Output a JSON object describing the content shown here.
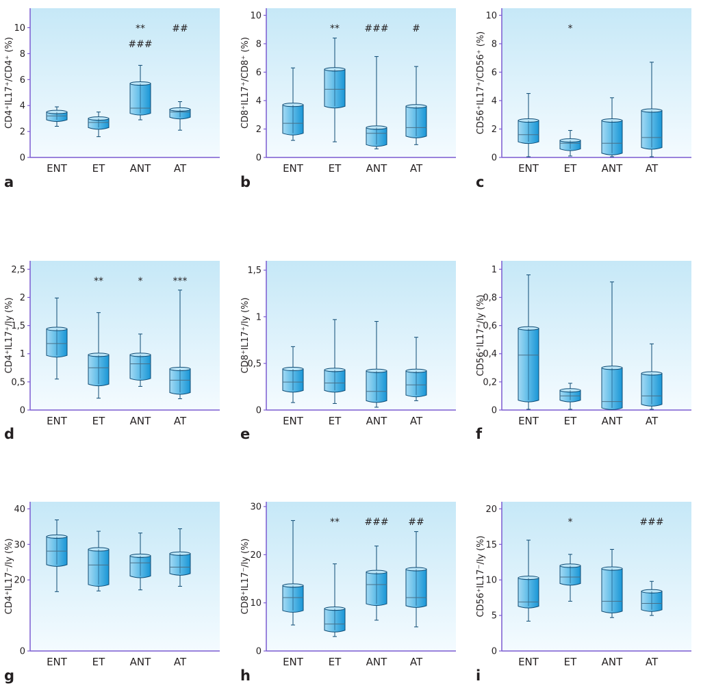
{
  "colors": {
    "plot_top": "#c6e8f7",
    "plot_bottom": "#f4fbff",
    "axis": "#7a5ad0",
    "box_light": "#a3daf4",
    "box_dark": "#1a96d6",
    "box_edge": "#0d4a73",
    "text": "#231f20"
  },
  "chart_data": [
    {
      "panel": "a",
      "type": "box",
      "ylabel": "CD4⁺IL17⁺/CD4⁺ (%)",
      "ylim": [
        0,
        11.5
      ],
      "yticks": [
        0,
        2,
        4,
        6,
        8,
        10
      ],
      "ytick_labels": [
        "0",
        "2",
        "4",
        "6",
        "8",
        "10"
      ],
      "categories": [
        "ENT",
        "ET",
        "ANT",
        "AT"
      ],
      "boxes": [
        {
          "min": 2.4,
          "q1": 2.9,
          "median": 3.2,
          "q3": 3.5,
          "max": 3.9
        },
        {
          "min": 1.6,
          "q1": 2.3,
          "median": 2.7,
          "q3": 3.0,
          "max": 3.5
        },
        {
          "min": 2.9,
          "q1": 3.4,
          "median": 3.8,
          "q3": 5.7,
          "max": 7.1
        },
        {
          "min": 2.1,
          "q1": 3.1,
          "median": 3.5,
          "q3": 3.7,
          "max": 4.3
        }
      ],
      "annotations": [
        {
          "category": "ANT",
          "lines": [
            "**",
            "###"
          ]
        },
        {
          "category": "AT",
          "lines": [
            "##"
          ]
        }
      ]
    },
    {
      "panel": "b",
      "type": "box",
      "ylabel": "CD8⁺IL17⁺/CD8⁺ (%)",
      "ylim": [
        0,
        10.5
      ],
      "yticks": [
        0,
        2,
        4,
        6,
        8,
        10
      ],
      "ytick_labels": [
        "0",
        "2",
        "4",
        "6",
        "8",
        "10"
      ],
      "categories": [
        "ENT",
        "ET",
        "ANT",
        "AT"
      ],
      "boxes": [
        {
          "min": 1.2,
          "q1": 1.7,
          "median": 2.4,
          "q3": 3.7,
          "max": 6.3
        },
        {
          "min": 1.1,
          "q1": 3.6,
          "median": 4.8,
          "q3": 6.2,
          "max": 8.4
        },
        {
          "min": 0.6,
          "q1": 0.9,
          "median": 1.7,
          "q3": 2.1,
          "max": 7.1
        },
        {
          "min": 0.9,
          "q1": 1.5,
          "median": 2.1,
          "q3": 3.6,
          "max": 6.4
        }
      ],
      "annotations": [
        {
          "category": "ET",
          "lines": [
            "**"
          ]
        },
        {
          "category": "ANT",
          "lines": [
            "###"
          ]
        },
        {
          "category": "AT",
          "lines": [
            "#"
          ]
        }
      ]
    },
    {
      "panel": "c",
      "type": "box",
      "ylabel": "CD56⁺IL17⁺/CD56⁺ (%)",
      "ylim": [
        0,
        10.5
      ],
      "yticks": [
        0,
        2,
        4,
        6,
        8,
        10
      ],
      "ytick_labels": [
        "0",
        "2",
        "4",
        "6",
        "8",
        "10"
      ],
      "categories": [
        "ENT",
        "ET",
        "ANT",
        "AT"
      ],
      "boxes": [
        {
          "min": 0.05,
          "q1": 1.1,
          "median": 1.6,
          "q3": 2.6,
          "max": 4.5
        },
        {
          "min": 0.1,
          "q1": 0.6,
          "median": 1.0,
          "q3": 1.2,
          "max": 1.9
        },
        {
          "min": 0.05,
          "q1": 0.3,
          "median": 1.0,
          "q3": 2.6,
          "max": 4.2
        },
        {
          "min": 0.05,
          "q1": 0.7,
          "median": 1.4,
          "q3": 3.3,
          "max": 6.7
        }
      ],
      "annotations": [
        {
          "category": "ET",
          "lines": [
            "*"
          ]
        }
      ]
    },
    {
      "panel": "d",
      "type": "box",
      "ylabel": "CD4⁺IL17⁺/ly (%)",
      "ylim": [
        0,
        2.65
      ],
      "yticks": [
        0,
        0.5,
        1,
        1.5,
        2,
        2.5
      ],
      "ytick_labels": [
        "0",
        "0,5",
        "1",
        "1,5",
        "2",
        "2,5"
      ],
      "categories": [
        "ENT",
        "ET",
        "ANT",
        "AT"
      ],
      "boxes": [
        {
          "min": 0.55,
          "q1": 0.97,
          "median": 1.18,
          "q3": 1.44,
          "max": 1.99
        },
        {
          "min": 0.21,
          "q1": 0.46,
          "median": 0.75,
          "q3": 0.98,
          "max": 1.73
        },
        {
          "min": 0.42,
          "q1": 0.56,
          "median": 0.82,
          "q3": 0.98,
          "max": 1.35
        },
        {
          "min": 0.2,
          "q1": 0.31,
          "median": 0.53,
          "q3": 0.73,
          "max": 2.13
        }
      ],
      "annotations": [
        {
          "category": "ET",
          "lines": [
            "**"
          ]
        },
        {
          "category": "ANT",
          "lines": [
            "*"
          ]
        },
        {
          "category": "AT",
          "lines": [
            "***"
          ]
        }
      ]
    },
    {
      "panel": "e",
      "type": "box",
      "ylabel": "CD8⁺IL17⁺/ly (%)",
      "ylim": [
        0,
        1.6
      ],
      "yticks": [
        0,
        0.5,
        1,
        1.5
      ],
      "ytick_labels": [
        "0",
        "0,5",
        "1",
        "1,5"
      ],
      "categories": [
        "ENT",
        "ET",
        "ANT",
        "AT"
      ],
      "boxes": [
        {
          "min": 0.08,
          "q1": 0.21,
          "median": 0.3,
          "q3": 0.44,
          "max": 0.68
        },
        {
          "min": 0.07,
          "q1": 0.21,
          "median": 0.29,
          "q3": 0.43,
          "max": 0.97
        },
        {
          "min": 0.03,
          "q1": 0.1,
          "median": 0.2,
          "q3": 0.42,
          "max": 0.95
        },
        {
          "min": 0.1,
          "q1": 0.16,
          "median": 0.27,
          "q3": 0.42,
          "max": 0.78
        }
      ],
      "annotations": []
    },
    {
      "panel": "f",
      "type": "box",
      "ylabel": "CD56⁺IL17⁺/ly (%)",
      "ylim": [
        0,
        1.06
      ],
      "yticks": [
        0,
        0.2,
        0.4,
        0.6,
        0.8,
        1
      ],
      "ytick_labels": [
        "0",
        "0,2",
        "0,4",
        "0,6",
        "0,8",
        "1"
      ],
      "categories": [
        "ENT",
        "ET",
        "ANT",
        "AT"
      ],
      "boxes": [
        {
          "min": 0.005,
          "q1": 0.07,
          "median": 0.39,
          "q3": 0.58,
          "max": 0.96
        },
        {
          "min": 0.005,
          "q1": 0.07,
          "median": 0.1,
          "q3": 0.14,
          "max": 0.19
        },
        {
          "min": 0.005,
          "q1": 0.015,
          "median": 0.06,
          "q3": 0.3,
          "max": 0.91
        },
        {
          "min": 0.005,
          "q1": 0.04,
          "median": 0.1,
          "q3": 0.26,
          "max": 0.47
        }
      ],
      "annotations": []
    },
    {
      "panel": "g",
      "type": "box",
      "ylabel": "CD4⁺IL17⁻/ly (%)",
      "ylim": [
        0,
        42
      ],
      "yticks": [
        0,
        20,
        30,
        40
      ],
      "ytick_labels": [
        "0",
        "20",
        "30",
        "40"
      ],
      "categories": [
        "ENT",
        "ET",
        "ANT",
        "AT"
      ],
      "boxes": [
        {
          "min": 16.7,
          "q1": 24.3,
          "median": 28.1,
          "q3": 32.2,
          "max": 36.9
        },
        {
          "min": 16.9,
          "q1": 18.7,
          "median": 24.2,
          "q3": 28.6,
          "max": 33.7
        },
        {
          "min": 17.2,
          "q1": 21.1,
          "median": 24.8,
          "q3": 26.8,
          "max": 33.2
        },
        {
          "min": 18.2,
          "q1": 21.8,
          "median": 23.6,
          "q3": 27.4,
          "max": 34.4
        }
      ],
      "annotations": []
    },
    {
      "panel": "h",
      "type": "box",
      "ylabel": "CD8⁺IL17⁻/ly (%)",
      "ylim": [
        0,
        31
      ],
      "yticks": [
        0,
        10,
        20,
        30
      ],
      "ytick_labels": [
        "0",
        "10",
        "20",
        "30"
      ],
      "categories": [
        "ENT",
        "ET",
        "ANT",
        "AT"
      ],
      "boxes": [
        {
          "min": 5.4,
          "q1": 8.4,
          "median": 11.1,
          "q3": 13.6,
          "max": 27.1
        },
        {
          "min": 3.0,
          "q1": 4.3,
          "median": 5.6,
          "q3": 8.8,
          "max": 18.1
        },
        {
          "min": 6.4,
          "q1": 9.8,
          "median": 13.8,
          "q3": 16.4,
          "max": 21.8
        },
        {
          "min": 5.0,
          "q1": 9.4,
          "median": 11.1,
          "q3": 17.0,
          "max": 24.8
        }
      ],
      "annotations": [
        {
          "category": "ET",
          "lines": [
            "**"
          ]
        },
        {
          "category": "ANT",
          "lines": [
            "###"
          ]
        },
        {
          "category": "AT",
          "lines": [
            "##"
          ]
        }
      ]
    },
    {
      "panel": "i",
      "type": "box",
      "ylabel": "CD56⁺IL17⁻/ly (%)",
      "ylim": [
        0,
        21
      ],
      "yticks": [
        0,
        5,
        10,
        15,
        20
      ],
      "ytick_labels": [
        "0",
        "5",
        "10",
        "15",
        "20"
      ],
      "categories": [
        "ENT",
        "ET",
        "ANT",
        "AT"
      ],
      "boxes": [
        {
          "min": 4.2,
          "q1": 6.3,
          "median": 6.9,
          "q3": 10.3,
          "max": 15.6
        },
        {
          "min": 7.0,
          "q1": 9.5,
          "median": 10.4,
          "q3": 12.0,
          "max": 13.6
        },
        {
          "min": 4.7,
          "q1": 5.6,
          "median": 7.0,
          "q3": 11.6,
          "max": 14.3
        },
        {
          "min": 5.0,
          "q1": 5.8,
          "median": 6.7,
          "q3": 8.4,
          "max": 9.8
        }
      ],
      "annotations": [
        {
          "category": "ET",
          "lines": [
            "*"
          ]
        },
        {
          "category": "AT",
          "lines": [
            "###"
          ]
        }
      ]
    }
  ]
}
